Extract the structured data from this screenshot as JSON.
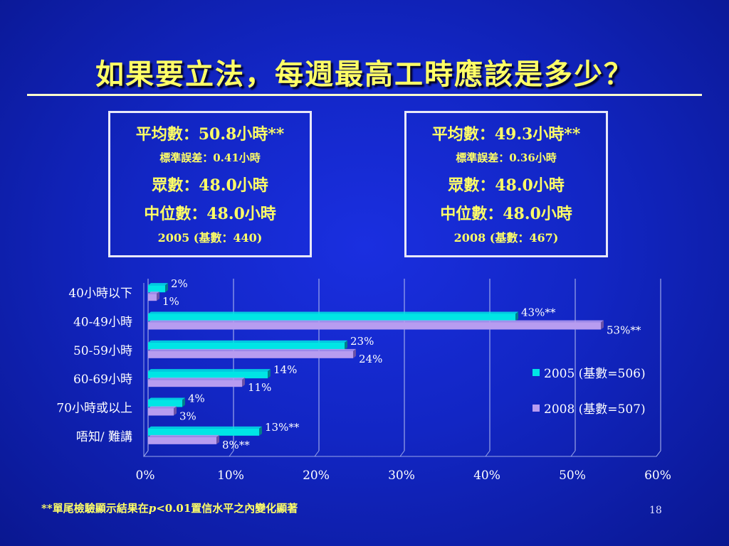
{
  "title": "如果要立法，每週最高工時應該是多少？",
  "summary_boxes": [
    {
      "mean": "平均數：50.8小時**",
      "se": "標準誤差：0.41小時",
      "mode": "眾數：48.0小時",
      "median": "中位數：48.0小時",
      "sample": "2005 (基數：440)"
    },
    {
      "mean": "平均數：49.3小時**",
      "se": "標準誤差：0.36小時",
      "mode": "眾數：48.0小時",
      "median": "中位數：48.0小時",
      "sample": "2008 (基數：467)"
    }
  ],
  "footnote": {
    "prefix": "**單尾檢驗顯示結果在",
    "p": "p",
    "suffix": "<0.01置信水平之內變化顯著"
  },
  "page_number": "18",
  "colors": {
    "series_2005": "#00e5e5",
    "series_2008": "#b79cf0",
    "title": "#ffff66",
    "background": "#1226c4"
  },
  "chart_data": {
    "type": "bar",
    "orientation": "horizontal",
    "categories": [
      "40小時以下",
      "40-49小時",
      "50-59小時",
      "60-69小時",
      "70小時或以上",
      "唔知/ 難講"
    ],
    "series": [
      {
        "name": "2005 (基數=506)",
        "values": [
          2,
          43,
          23,
          14,
          4,
          13
        ],
        "labels": [
          "2%",
          "43%**",
          "23%",
          "14%",
          "4%",
          "13%**"
        ]
      },
      {
        "name": "2008 (基數=507)",
        "values": [
          1,
          53,
          24,
          11,
          3,
          8
        ],
        "labels": [
          "1%",
          "53%**",
          "24%",
          "11%",
          "3%",
          "8%**"
        ]
      }
    ],
    "xlim": [
      0,
      60
    ],
    "xticks": [
      "0%",
      "10%",
      "20%",
      "30%",
      "40%",
      "50%",
      "60%"
    ],
    "grid": true,
    "legend_position": "right"
  }
}
